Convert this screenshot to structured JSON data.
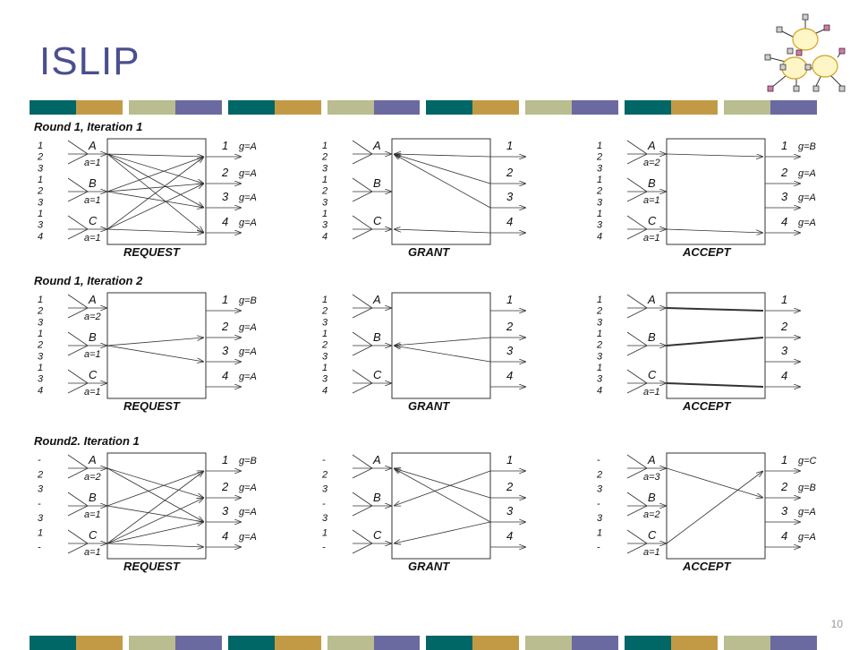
{
  "title": "ISLIP",
  "page_number": "10",
  "colors": {
    "title": "#4a4f8e",
    "band": [
      "#006666",
      "#c29a46",
      "#b9bd90",
      "#6b6aa0"
    ]
  },
  "rounds": [
    {
      "label": "Round 1, Iteration 1",
      "panels": [
        {
          "stage": "REQUEST",
          "inputs": [
            "A",
            "B",
            "C"
          ],
          "ports": [
            "1",
            "2",
            "3",
            "1",
            "2",
            "3",
            "1",
            "3",
            "4"
          ],
          "counters": [
            "a=1",
            "a=1",
            "a=1"
          ],
          "outputs": [
            "1",
            "2",
            "3",
            "4"
          ],
          "g_labels": [
            "g=A",
            "g=A",
            "g=A",
            "g=A"
          ]
        },
        {
          "stage": "GRANT",
          "inputs": [
            "A",
            "B",
            "C"
          ],
          "ports": [
            "1",
            "2",
            "3",
            "1",
            "2",
            "3",
            "1",
            "3",
            "4"
          ],
          "counters": [],
          "outputs": [
            "1",
            "2",
            "3",
            "4"
          ],
          "g_labels": []
        },
        {
          "stage": "ACCEPT",
          "inputs": [
            "A",
            "B",
            "C"
          ],
          "ports": [
            "1",
            "2",
            "3",
            "1",
            "2",
            "3",
            "1",
            "3",
            "4"
          ],
          "counters": [
            "a=2",
            "a=1",
            "a=1"
          ],
          "outputs": [
            "1",
            "2",
            "3",
            "4"
          ],
          "g_labels": [
            "g=B",
            "g=A",
            "g=A",
            "g=A"
          ]
        }
      ]
    },
    {
      "label": "Round 1, Iteration 2",
      "panels": [
        {
          "stage": "REQUEST",
          "inputs": [
            "A",
            "B",
            "C"
          ],
          "ports": [
            "1",
            "2",
            "3",
            "1",
            "2",
            "3",
            "1",
            "3",
            "4"
          ],
          "counters": [
            "a=2",
            "a=1",
            "a=1"
          ],
          "outputs": [
            "1",
            "2",
            "3",
            "4"
          ],
          "g_labels": [
            "g=B",
            "g=A",
            "g=A",
            "g=A"
          ]
        },
        {
          "stage": "GRANT",
          "inputs": [
            "A",
            "B",
            "C"
          ],
          "ports": [
            "1",
            "2",
            "3",
            "1",
            "2",
            "3",
            "1",
            "3",
            "4"
          ],
          "counters": [],
          "outputs": [
            "1",
            "2",
            "3",
            "4"
          ],
          "g_labels": []
        },
        {
          "stage": "ACCEPT",
          "inputs": [
            "A",
            "B",
            "C"
          ],
          "ports": [
            "1",
            "2",
            "3",
            "1",
            "2",
            "3",
            "1",
            "3",
            "4"
          ],
          "counters": [
            "a=1"
          ],
          "outputs": [
            "1",
            "2",
            "3",
            "4"
          ],
          "g_labels": []
        }
      ]
    },
    {
      "label": "Round2. Iteration 1",
      "panels": [
        {
          "stage": "REQUEST",
          "inputs": [
            "A",
            "B",
            "C"
          ],
          "ports": [
            "-",
            "2",
            "3",
            "-",
            "3",
            "1",
            "-"
          ],
          "counters": [
            "a=2",
            "a=1",
            "a=1"
          ],
          "outputs": [
            "1",
            "2",
            "3",
            "4"
          ],
          "g_labels": [
            "g=B",
            "g=A",
            "g=A",
            "g=A"
          ]
        },
        {
          "stage": "GRANT",
          "inputs": [
            "A",
            "B",
            "C"
          ],
          "ports": [
            "-",
            "2",
            "3",
            "-",
            "3",
            "1",
            "-"
          ],
          "counters": [],
          "outputs": [
            "1",
            "2",
            "3",
            "4"
          ],
          "g_labels": []
        },
        {
          "stage": "ACCEPT",
          "inputs": [
            "A",
            "B",
            "C"
          ],
          "ports": [
            "-",
            "2",
            "3",
            "-",
            "3",
            "1",
            "-"
          ],
          "counters": [
            "a=3",
            "a=2",
            "a=1"
          ],
          "outputs": [
            "1",
            "2",
            "3",
            "4"
          ],
          "g_labels": [
            "g=C",
            "g=B",
            "g=A",
            "g=A"
          ]
        }
      ]
    }
  ]
}
